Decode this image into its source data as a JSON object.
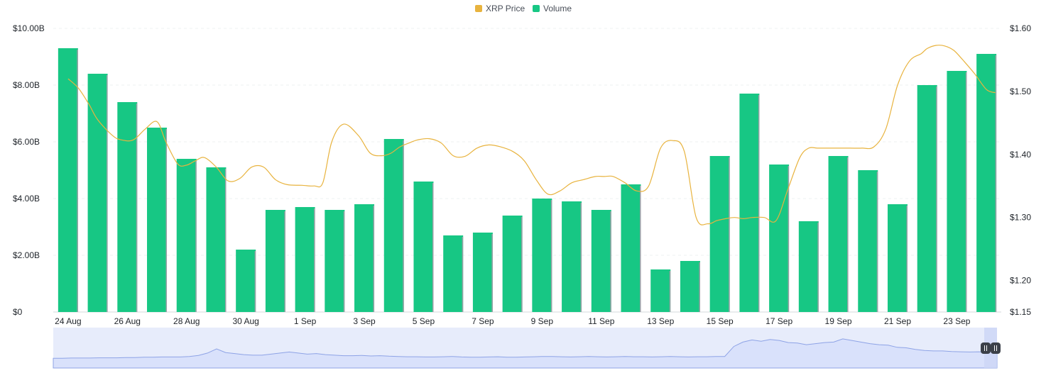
{
  "legend": {
    "price_label": "XRP Price",
    "volume_label": "Volume"
  },
  "colors": {
    "price": "#e8b33e",
    "volume": "#17c784",
    "navigator": "#8ea3e6"
  },
  "chart_data": {
    "type": "bar",
    "categories": [
      "24 Aug",
      "25 Aug",
      "26 Aug",
      "27 Aug",
      "28 Aug",
      "29 Aug",
      "30 Aug",
      "31 Aug",
      "1 Sep",
      "2 Sep",
      "3 Sep",
      "4 Sep",
      "5 Sep",
      "6 Sep",
      "7 Sep",
      "8 Sep",
      "9 Sep",
      "10 Sep",
      "11 Sep",
      "12 Sep",
      "13 Sep",
      "14 Sep",
      "15 Sep",
      "16 Sep",
      "17 Sep",
      "18 Sep",
      "19 Sep",
      "20 Sep",
      "21 Sep",
      "22 Sep",
      "23 Sep",
      "24 Sep"
    ],
    "x_tick_labels": [
      "24 Aug",
      "26 Aug",
      "28 Aug",
      "30 Aug",
      "1 Sep",
      "3 Sep",
      "5 Sep",
      "7 Sep",
      "9 Sep",
      "11 Sep",
      "13 Sep",
      "15 Sep",
      "17 Sep",
      "19 Sep",
      "21 Sep",
      "23 Sep"
    ],
    "series": [
      {
        "name": "Volume",
        "type": "bar",
        "axis": "left",
        "values": [
          9.3,
          8.4,
          7.4,
          6.5,
          5.4,
          5.1,
          2.2,
          3.6,
          3.7,
          3.6,
          3.8,
          6.1,
          4.6,
          2.7,
          2.8,
          3.4,
          4.0,
          3.9,
          3.6,
          4.5,
          1.5,
          1.8,
          5.5,
          7.7,
          5.2,
          3.2,
          5.5,
          5.0,
          3.8,
          8.0,
          8.5,
          9.1
        ]
      },
      {
        "name": "XRP Price",
        "type": "line",
        "axis": "right",
        "x": [
          0.0,
          0.35,
          0.7,
          1.0,
          1.5,
          1.8,
          2.2,
          2.6,
          3.0,
          3.3,
          3.7,
          4.0,
          4.3,
          4.6,
          5.0,
          5.4,
          5.8,
          6.2,
          6.6,
          7.0,
          7.4,
          7.9,
          8.3,
          8.6,
          8.9,
          9.3,
          9.8,
          10.2,
          10.6,
          10.9,
          11.2,
          11.5,
          11.8,
          12.2,
          12.6,
          13.0,
          13.4,
          13.8,
          14.2,
          14.6,
          15.0,
          15.4,
          15.8,
          16.2,
          16.6,
          17.0,
          17.4,
          17.8,
          18.1,
          18.4,
          18.8,
          19.2,
          19.6,
          20.0,
          20.4,
          20.8,
          21.2,
          21.6,
          21.9,
          22.2,
          22.5,
          22.8,
          23.1,
          23.5,
          23.9,
          24.3,
          24.7,
          25.0,
          25.3,
          25.7,
          26.0,
          26.4,
          26.8,
          27.2,
          27.6,
          28.0,
          28.4,
          28.8,
          29.0,
          29.3,
          29.6,
          29.9,
          30.2,
          30.6,
          31.0,
          31.3
        ],
        "values": [
          1.52,
          1.505,
          1.48,
          1.455,
          1.43,
          1.423,
          1.423,
          1.44,
          1.452,
          1.42,
          1.385,
          1.383,
          1.39,
          1.395,
          1.38,
          1.358,
          1.362,
          1.38,
          1.38,
          1.36,
          1.352,
          1.351,
          1.35,
          1.355,
          1.42,
          1.448,
          1.43,
          1.402,
          1.398,
          1.402,
          1.412,
          1.418,
          1.423,
          1.425,
          1.418,
          1.398,
          1.397,
          1.41,
          1.415,
          1.412,
          1.405,
          1.39,
          1.36,
          1.337,
          1.342,
          1.355,
          1.36,
          1.365,
          1.365,
          1.365,
          1.355,
          1.342,
          1.35,
          1.41,
          1.422,
          1.405,
          1.3,
          1.29,
          1.295,
          1.298,
          1.3,
          1.298,
          1.3,
          1.3,
          1.295,
          1.345,
          1.395,
          1.41,
          1.41,
          1.41,
          1.41,
          1.41,
          1.41,
          1.412,
          1.44,
          1.51,
          1.548,
          1.56,
          1.568,
          1.573,
          1.572,
          1.565,
          1.55,
          1.528,
          1.503,
          1.498
        ]
      }
    ],
    "y_left": {
      "ticks": [
        "$10.00B",
        "$8.00B",
        "$6.00B",
        "$4.00B",
        "$2.00B",
        "$0"
      ],
      "tick_values": [
        10,
        8,
        6,
        4,
        2,
        0
      ],
      "range": [
        0,
        10
      ]
    },
    "y_right": {
      "ticks": [
        "$1.60",
        "$1.50",
        "$1.40",
        "$1.30",
        "$1.20",
        "$1.15"
      ],
      "tick_values": [
        1.6,
        1.5,
        1.4,
        1.3,
        1.2,
        1.15
      ],
      "range": [
        1.15,
        1.6
      ]
    },
    "grid": true,
    "legend_position": "top-center",
    "navigator": {
      "values": [
        0.1,
        0.1,
        0.11,
        0.11,
        0.11,
        0.12,
        0.12,
        0.12,
        0.13,
        0.13,
        0.14,
        0.14,
        0.15,
        0.15,
        0.15,
        0.17,
        0.21,
        0.3,
        0.46,
        0.32,
        0.28,
        0.24,
        0.22,
        0.22,
        0.26,
        0.3,
        0.34,
        0.3,
        0.26,
        0.28,
        0.24,
        0.22,
        0.2,
        0.2,
        0.21,
        0.19,
        0.2,
        0.18,
        0.17,
        0.16,
        0.16,
        0.15,
        0.15,
        0.16,
        0.17,
        0.15,
        0.14,
        0.14,
        0.15,
        0.16,
        0.14,
        0.14,
        0.15,
        0.16,
        0.17,
        0.17,
        0.16,
        0.15,
        0.16,
        0.17,
        0.16,
        0.15,
        0.16,
        0.17,
        0.16,
        0.16,
        0.15,
        0.16,
        0.17,
        0.16,
        0.15,
        0.16,
        0.16,
        0.17,
        0.17,
        0.55,
        0.72,
        0.8,
        0.75,
        0.82,
        0.78,
        0.7,
        0.68,
        0.62,
        0.66,
        0.7,
        0.72,
        0.84,
        0.78,
        0.72,
        0.66,
        0.62,
        0.6,
        0.52,
        0.5,
        0.44,
        0.4,
        0.38,
        0.38,
        0.36,
        0.35,
        0.34,
        0.35,
        0.34,
        0.36
      ],
      "range_fraction": [
        0.0,
        1.0
      ]
    }
  }
}
